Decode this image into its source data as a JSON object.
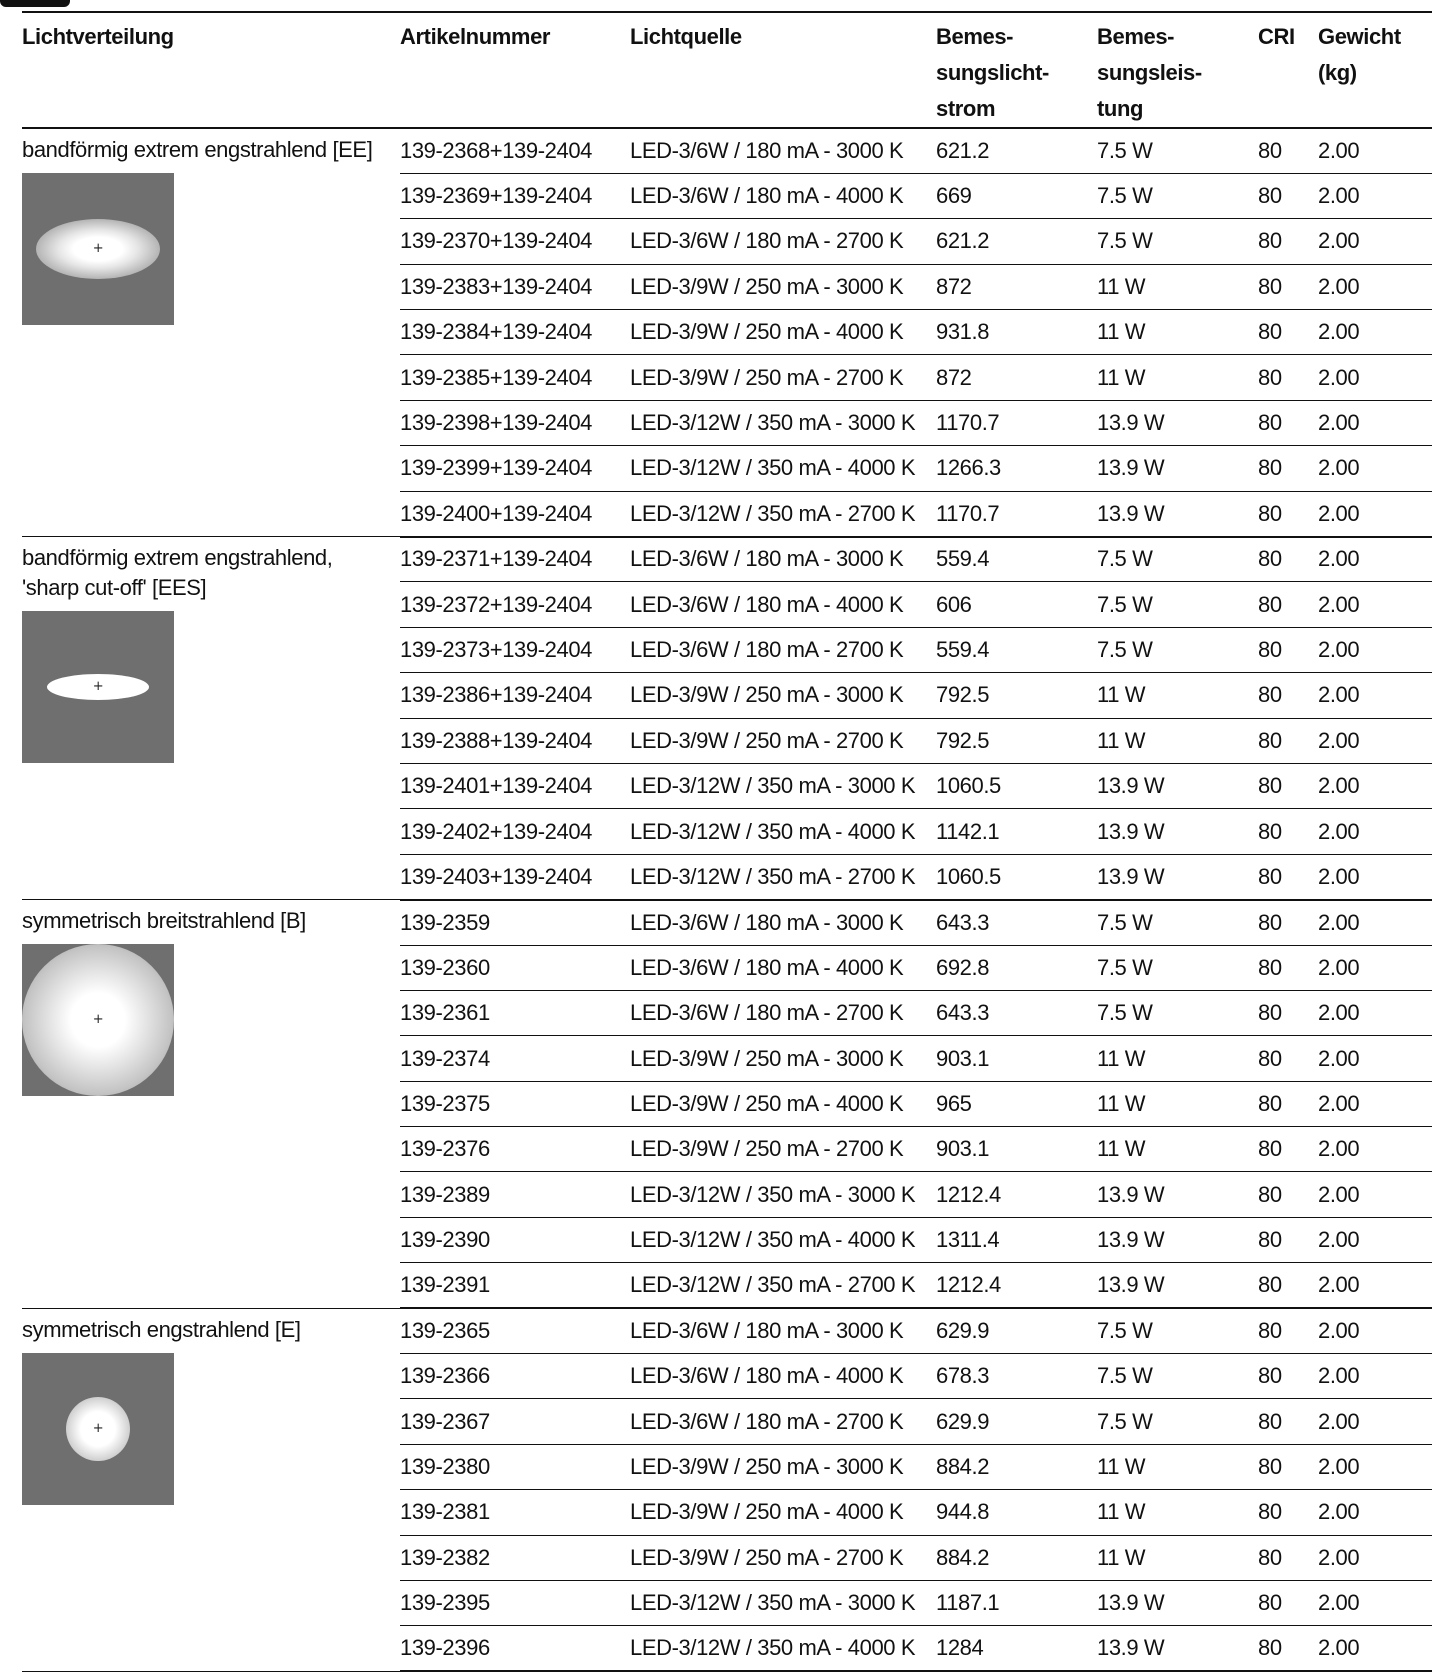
{
  "table": {
    "headers": [
      "Lichtverteilung",
      "Artikelnummer",
      "Lichtquelle",
      "Bemes-\nsungslicht-\nstrom",
      "Bemes-\nsungsleis-\ntung",
      "CRI",
      "Gewicht\n(kg)"
    ],
    "groups": [
      {
        "label": "bandförmig extrem engstrahlend [EE]",
        "thumbnail_icon": "light-distribution-ee-icon",
        "rows": [
          [
            "139-2368+139-2404",
            "LED-3/6W / 180 mA - 3000 K",
            "621.2",
            "7.5 W",
            "80",
            "2.00"
          ],
          [
            "139-2369+139-2404",
            "LED-3/6W / 180 mA - 4000 K",
            "669",
            "7.5 W",
            "80",
            "2.00"
          ],
          [
            "139-2370+139-2404",
            "LED-3/6W / 180 mA - 2700 K",
            "621.2",
            "7.5 W",
            "80",
            "2.00"
          ],
          [
            "139-2383+139-2404",
            "LED-3/9W / 250 mA - 3000 K",
            "872",
            "11 W",
            "80",
            "2.00"
          ],
          [
            "139-2384+139-2404",
            "LED-3/9W / 250 mA - 4000 K",
            "931.8",
            "11 W",
            "80",
            "2.00"
          ],
          [
            "139-2385+139-2404",
            "LED-3/9W / 250 mA - 2700 K",
            "872",
            "11 W",
            "80",
            "2.00"
          ],
          [
            "139-2398+139-2404",
            "LED-3/12W / 350 mA - 3000 K",
            "1170.7",
            "13.9 W",
            "80",
            "2.00"
          ],
          [
            "139-2399+139-2404",
            "LED-3/12W / 350 mA - 4000 K",
            "1266.3",
            "13.9 W",
            "80",
            "2.00"
          ],
          [
            "139-2400+139-2404",
            "LED-3/12W / 350 mA - 2700 K",
            "1170.7",
            "13.9 W",
            "80",
            "2.00"
          ]
        ]
      },
      {
        "label": "bandförmig extrem engstrahlend, 'sharp cut-off' [EES]",
        "thumbnail_icon": "light-distribution-ees-icon",
        "rows": [
          [
            "139-2371+139-2404",
            "LED-3/6W / 180 mA - 3000 K",
            "559.4",
            "7.5 W",
            "80",
            "2.00"
          ],
          [
            "139-2372+139-2404",
            "LED-3/6W / 180 mA - 4000 K",
            "606",
            "7.5 W",
            "80",
            "2.00"
          ],
          [
            "139-2373+139-2404",
            "LED-3/6W / 180 mA - 2700 K",
            "559.4",
            "7.5 W",
            "80",
            "2.00"
          ],
          [
            "139-2386+139-2404",
            "LED-3/9W / 250 mA - 3000 K",
            "792.5",
            "11 W",
            "80",
            "2.00"
          ],
          [
            "139-2388+139-2404",
            "LED-3/9W / 250 mA - 2700 K",
            "792.5",
            "11 W",
            "80",
            "2.00"
          ],
          [
            "139-2401+139-2404",
            "LED-3/12W / 350 mA - 3000 K",
            "1060.5",
            "13.9 W",
            "80",
            "2.00"
          ],
          [
            "139-2402+139-2404",
            "LED-3/12W / 350 mA - 4000 K",
            "1142.1",
            "13.9 W",
            "80",
            "2.00"
          ],
          [
            "139-2403+139-2404",
            "LED-3/12W / 350 mA - 2700 K",
            "1060.5",
            "13.9 W",
            "80",
            "2.00"
          ]
        ]
      },
      {
        "label": "symmetrisch breitstrahlend [B]",
        "thumbnail_icon": "light-distribution-b-icon",
        "rows": [
          [
            "139-2359",
            "LED-3/6W / 180 mA - 3000 K",
            "643.3",
            "7.5 W",
            "80",
            "2.00"
          ],
          [
            "139-2360",
            "LED-3/6W / 180 mA - 4000 K",
            "692.8",
            "7.5 W",
            "80",
            "2.00"
          ],
          [
            "139-2361",
            "LED-3/6W / 180 mA - 2700 K",
            "643.3",
            "7.5 W",
            "80",
            "2.00"
          ],
          [
            "139-2374",
            "LED-3/9W / 250 mA - 3000 K",
            "903.1",
            "11 W",
            "80",
            "2.00"
          ],
          [
            "139-2375",
            "LED-3/9W / 250 mA - 4000 K",
            "965",
            "11 W",
            "80",
            "2.00"
          ],
          [
            "139-2376",
            "LED-3/9W / 250 mA - 2700 K",
            "903.1",
            "11 W",
            "80",
            "2.00"
          ],
          [
            "139-2389",
            "LED-3/12W / 350 mA - 3000 K",
            "1212.4",
            "13.9 W",
            "80",
            "2.00"
          ],
          [
            "139-2390",
            "LED-3/12W / 350 mA - 4000 K",
            "1311.4",
            "13.9 W",
            "80",
            "2.00"
          ],
          [
            "139-2391",
            "LED-3/12W / 350 mA - 2700 K",
            "1212.4",
            "13.9 W",
            "80",
            "2.00"
          ]
        ]
      },
      {
        "label": "symmetrisch engstrahlend [E]",
        "thumbnail_icon": "light-distribution-e-icon",
        "rows": [
          [
            "139-2365",
            "LED-3/6W / 180 mA - 3000 K",
            "629.9",
            "7.5 W",
            "80",
            "2.00"
          ],
          [
            "139-2366",
            "LED-3/6W / 180 mA - 4000 K",
            "678.3",
            "7.5 W",
            "80",
            "2.00"
          ],
          [
            "139-2367",
            "LED-3/6W / 180 mA - 2700 K",
            "629.9",
            "7.5 W",
            "80",
            "2.00"
          ],
          [
            "139-2380",
            "LED-3/9W / 250 mA - 3000 K",
            "884.2",
            "11 W",
            "80",
            "2.00"
          ],
          [
            "139-2381",
            "LED-3/9W / 250 mA - 4000 K",
            "944.8",
            "11 W",
            "80",
            "2.00"
          ],
          [
            "139-2382",
            "LED-3/9W / 250 mA - 2700 K",
            "884.2",
            "11 W",
            "80",
            "2.00"
          ],
          [
            "139-2395",
            "LED-3/12W / 350 mA - 3000 K",
            "1187.1",
            "13.9 W",
            "80",
            "2.00"
          ],
          [
            "139-2396",
            "LED-3/12W / 350 mA - 4000 K",
            "1284",
            "13.9 W",
            "80",
            "2.00"
          ]
        ]
      }
    ]
  }
}
